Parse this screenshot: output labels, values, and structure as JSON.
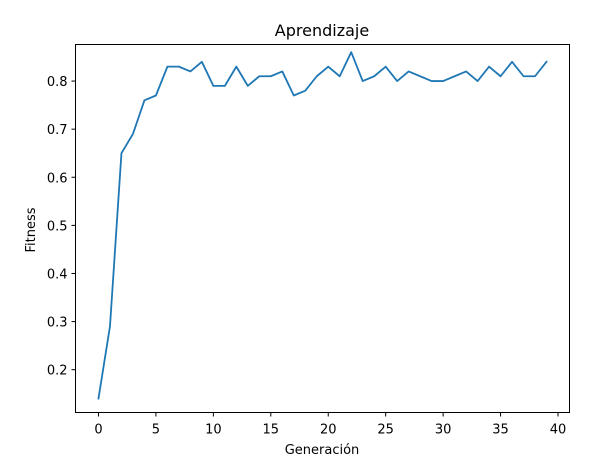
{
  "chart_data": {
    "type": "line",
    "title": "Aprendizaje",
    "xlabel": "Generación",
    "ylabel": "Fitness",
    "xlim": [
      -2,
      41
    ],
    "ylim": [
      0.111,
      0.876
    ],
    "xticks": [
      0,
      5,
      10,
      15,
      20,
      25,
      30,
      35,
      40
    ],
    "yticks": [
      0.2,
      0.3,
      0.4,
      0.5,
      0.6,
      0.7,
      0.8
    ],
    "ytick_labels": [
      "0.2",
      "0.3",
      "0.4",
      "0.5",
      "0.6",
      "0.7",
      "0.8"
    ],
    "grid": false,
    "legend": "none",
    "series": [
      {
        "color": "#1f77b4",
        "x": [
          0,
          1,
          2,
          3,
          4,
          5,
          6,
          7,
          8,
          9,
          10,
          11,
          12,
          13,
          14,
          15,
          16,
          17,
          18,
          19,
          20,
          21,
          22,
          23,
          24,
          25,
          26,
          27,
          28,
          29,
          30,
          31,
          32,
          33,
          34,
          35,
          36,
          37,
          38,
          39
        ],
        "values": [
          0.14,
          0.29,
          0.65,
          0.69,
          0.76,
          0.77,
          0.83,
          0.83,
          0.82,
          0.84,
          0.79,
          0.79,
          0.83,
          0.79,
          0.81,
          0.81,
          0.82,
          0.77,
          0.78,
          0.81,
          0.83,
          0.81,
          0.86,
          0.8,
          0.81,
          0.83,
          0.8,
          0.82,
          0.81,
          0.8,
          0.8,
          0.81,
          0.82,
          0.8,
          0.83,
          0.81,
          0.84,
          0.81,
          0.81,
          0.84
        ]
      }
    ]
  }
}
